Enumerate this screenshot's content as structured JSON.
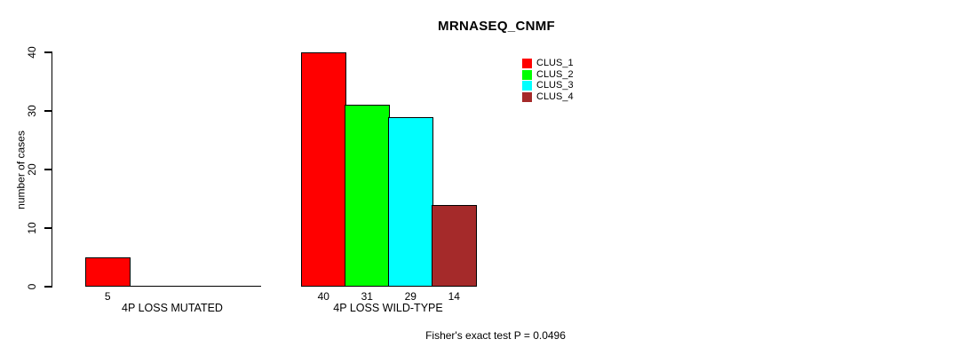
{
  "chart_data": {
    "type": "bar",
    "title": "MRNASEQ_CNMF",
    "ylabel": "number of cases",
    "xlabel": "",
    "ylim": [
      0,
      40
    ],
    "yticks": [
      0,
      10,
      20,
      30,
      40
    ],
    "categories": [
      "4P LOSS MUTATED",
      "4P LOSS WILD-TYPE"
    ],
    "series": [
      {
        "name": "CLUS_1",
        "color": "#ff0000",
        "values": [
          5,
          40
        ]
      },
      {
        "name": "CLUS_2",
        "color": "#00ff00",
        "values": [
          0,
          31
        ]
      },
      {
        "name": "CLUS_3",
        "color": "#00ffff",
        "values": [
          0,
          29
        ]
      },
      {
        "name": "CLUS_4",
        "color": "#a52a2a",
        "values": [
          0,
          14
        ]
      }
    ],
    "bar_value_labels_shown_for_nonzero_only": true,
    "annotation": "Fisher's exact test P = 0.0496",
    "legend_position": "top-right",
    "grid": false,
    "bar_border_color": "#000000",
    "background_color": "#ffffff",
    "text_color": "#000000"
  }
}
